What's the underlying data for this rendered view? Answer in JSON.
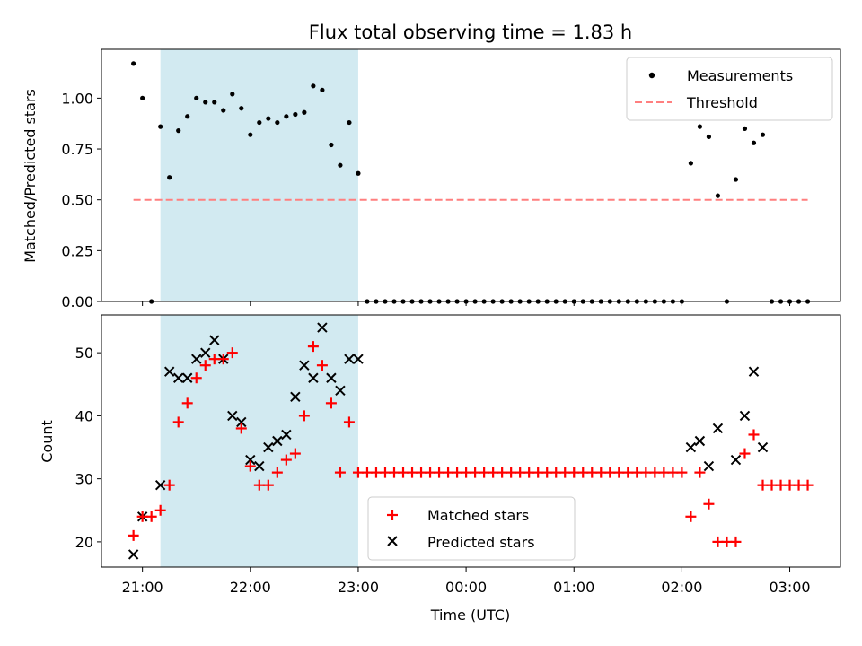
{
  "title": "Flux total observing time = 1.83 h",
  "colors": {
    "shade": "#add8e6",
    "threshold": "#ff7f7f",
    "matched": "#ff0000",
    "predicted": "#000000",
    "measurement": "#000000"
  },
  "chart_data": [
    {
      "type": "scatter",
      "ylabel": "Matched/Predicted stars",
      "ylim": [
        0,
        1.24
      ],
      "xlim": [
        20.62,
        27.47
      ],
      "yticks": [
        0.0,
        0.25,
        0.5,
        0.75,
        1.0
      ],
      "ytick_labels": [
        "0.00",
        "0.25",
        "0.50",
        "0.75",
        "1.00"
      ],
      "shaded_span": {
        "start": "21:10",
        "end": "23:00"
      },
      "legend": {
        "placement": "top-right",
        "entries": [
          {
            "key": "measurements",
            "label": "Measurements"
          },
          {
            "key": "threshold",
            "label": "Threshold"
          }
        ]
      },
      "threshold": {
        "value": 0.5,
        "x_start": "20:55",
        "x_end": "03:10"
      },
      "series": [
        {
          "name": "Measurements",
          "x": [
            "20:55",
            "21:00",
            "21:05",
            "21:10",
            "21:15",
            "21:20",
            "21:25",
            "21:30",
            "21:35",
            "21:40",
            "21:45",
            "21:50",
            "21:55",
            "22:00",
            "22:05",
            "22:10",
            "22:15",
            "22:20",
            "22:25",
            "22:30",
            "22:35",
            "22:40",
            "22:45",
            "22:50",
            "22:55",
            "23:00",
            "23:05",
            "23:10",
            "23:15",
            "23:20",
            "23:25",
            "23:30",
            "23:35",
            "23:40",
            "23:45",
            "23:50",
            "23:55",
            "00:00",
            "00:05",
            "00:10",
            "00:15",
            "00:20",
            "00:25",
            "00:30",
            "00:35",
            "00:40",
            "00:45",
            "00:50",
            "00:55",
            "01:00",
            "01:05",
            "01:10",
            "01:15",
            "01:20",
            "01:25",
            "01:30",
            "01:35",
            "01:40",
            "01:45",
            "01:50",
            "01:55",
            "02:00",
            "02:05",
            "02:10",
            "02:15",
            "02:20",
            "02:25",
            "02:30",
            "02:35",
            "02:40",
            "02:45",
            "02:50",
            "02:55",
            "03:00",
            "03:05",
            "03:10"
          ],
          "values": [
            1.17,
            1.0,
            0.0,
            0.86,
            0.61,
            0.84,
            0.91,
            1.0,
            0.98,
            0.98,
            0.94,
            1.02,
            0.95,
            0.82,
            0.88,
            0.9,
            0.88,
            0.91,
            0.92,
            0.93,
            1.06,
            1.04,
            0.77,
            0.67,
            0.88,
            0.63,
            0.0,
            0.0,
            0.0,
            0.0,
            0.0,
            0.0,
            0.0,
            0.0,
            0.0,
            0.0,
            0.0,
            0.0,
            0.0,
            0.0,
            0.0,
            0.0,
            0.0,
            0.0,
            0.0,
            0.0,
            0.0,
            0.0,
            0.0,
            0.0,
            0.0,
            0.0,
            0.0,
            0.0,
            0.0,
            0.0,
            0.0,
            0.0,
            0.0,
            0.0,
            0.0,
            0.0,
            0.68,
            0.86,
            0.81,
            0.52,
            0.0,
            0.6,
            0.85,
            0.78,
            0.82,
            0.0,
            0.0,
            0.0,
            0.0,
            0.0
          ]
        }
      ]
    },
    {
      "type": "scatter",
      "xlabel": "Time (UTC)",
      "ylabel": "Count",
      "ylim": [
        16,
        56
      ],
      "xlim": [
        20.62,
        27.47
      ],
      "yticks": [
        20,
        30,
        40,
        50
      ],
      "ytick_labels": [
        "20",
        "30",
        "40",
        "50"
      ],
      "xticks": [
        21,
        22,
        23,
        24,
        25,
        26,
        27
      ],
      "xtick_labels": [
        "21:00",
        "22:00",
        "23:00",
        "00:00",
        "01:00",
        "02:00",
        "03:00"
      ],
      "shaded_span": {
        "start": "21:10",
        "end": "23:00"
      },
      "legend": {
        "placement": "bottom-center",
        "entries": [
          {
            "key": "matched",
            "label": "Matched stars"
          },
          {
            "key": "predicted",
            "label": "Predicted stars"
          }
        ]
      },
      "series": [
        {
          "name": "Matched stars",
          "x": [
            "20:55",
            "21:00",
            "21:05",
            "21:10",
            "21:15",
            "21:20",
            "21:25",
            "21:30",
            "21:35",
            "21:40",
            "21:45",
            "21:50",
            "21:55",
            "22:00",
            "22:05",
            "22:10",
            "22:15",
            "22:20",
            "22:25",
            "22:30",
            "22:35",
            "22:40",
            "22:45",
            "22:50",
            "22:55",
            "23:00",
            "23:05",
            "23:10",
            "23:15",
            "23:20",
            "23:25",
            "23:30",
            "23:35",
            "23:40",
            "23:45",
            "23:50",
            "23:55",
            "00:00",
            "00:05",
            "00:10",
            "00:15",
            "00:20",
            "00:25",
            "00:30",
            "00:35",
            "00:40",
            "00:45",
            "00:50",
            "00:55",
            "01:00",
            "01:05",
            "01:10",
            "01:15",
            "01:20",
            "01:25",
            "01:30",
            "01:35",
            "01:40",
            "01:45",
            "01:50",
            "01:55",
            "02:00",
            "02:05",
            "02:10",
            "02:15",
            "02:20",
            "02:25",
            "02:30",
            "02:35",
            "02:40",
            "02:45",
            "02:50",
            "02:55",
            "03:00",
            "03:05",
            "03:10"
          ],
          "values": [
            21,
            24,
            24,
            25,
            29,
            39,
            42,
            46,
            48,
            49,
            49,
            50,
            38,
            32,
            29,
            29,
            31,
            33,
            34,
            40,
            51,
            48,
            42,
            31,
            39,
            31,
            31,
            31,
            31,
            31,
            31,
            31,
            31,
            31,
            31,
            31,
            31,
            31,
            31,
            31,
            31,
            31,
            31,
            31,
            31,
            31,
            31,
            31,
            31,
            31,
            31,
            31,
            31,
            31,
            31,
            31,
            31,
            31,
            31,
            31,
            31,
            31,
            24,
            31,
            26,
            20,
            20,
            20,
            34,
            37,
            29,
            29,
            29,
            29,
            29,
            29
          ]
        },
        {
          "name": "Predicted stars",
          "x": [
            "20:55",
            "21:00",
            "21:10",
            "21:15",
            "21:20",
            "21:25",
            "21:30",
            "21:35",
            "21:40",
            "21:45",
            "21:50",
            "21:55",
            "22:00",
            "22:05",
            "22:10",
            "22:15",
            "22:20",
            "22:25",
            "22:30",
            "22:35",
            "22:40",
            "22:45",
            "22:50",
            "22:55",
            "23:00",
            "02:05",
            "02:10",
            "02:15",
            "02:20",
            "02:30",
            "02:35",
            "02:40",
            "02:45"
          ],
          "values": [
            18,
            24,
            29,
            47,
            46,
            46,
            49,
            50,
            52,
            49,
            40,
            39,
            33,
            32,
            35,
            36,
            37,
            43,
            48,
            46,
            54,
            46,
            44,
            49,
            49,
            35,
            36,
            32,
            38,
            33,
            40,
            47,
            35
          ]
        }
      ]
    }
  ]
}
